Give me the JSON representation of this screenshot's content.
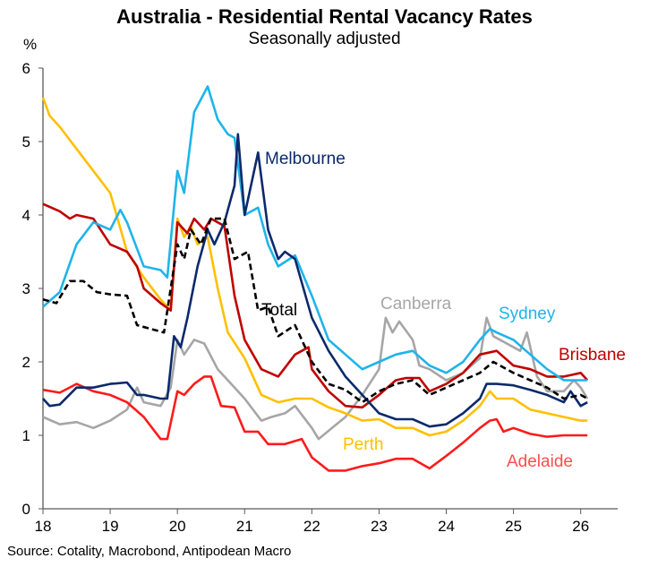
{
  "chart_data": {
    "type": "line",
    "title": "Australia - Residential Rental Vacancy Rates",
    "subtitle": "Seasonally adjusted",
    "ylabel": "%",
    "xlabel": "",
    "source": "Source: Cotality, Macrobond, Antipodean Macro",
    "xlim": [
      18,
      26.55
    ],
    "ylim": [
      0,
      6
    ],
    "xticks": [
      "18",
      "19",
      "20",
      "21",
      "22",
      "23",
      "24",
      "25",
      "26"
    ],
    "yticks": [
      "0",
      "1",
      "2",
      "3",
      "4",
      "5",
      "6"
    ],
    "grid": false,
    "legend": "inline labels",
    "series": [
      {
        "name": "Canberra",
        "color": "#a6a6a6",
        "dashed": false,
        "points": [
          [
            18,
            1.25
          ],
          [
            18.25,
            1.15
          ],
          [
            18.5,
            1.18
          ],
          [
            18.75,
            1.1
          ],
          [
            19,
            1.2
          ],
          [
            19.25,
            1.35
          ],
          [
            19.4,
            1.65
          ],
          [
            19.5,
            1.45
          ],
          [
            19.75,
            1.4
          ],
          [
            19.9,
            1.65
          ],
          [
            20,
            2.3
          ],
          [
            20.1,
            2.1
          ],
          [
            20.25,
            2.3
          ],
          [
            20.4,
            2.25
          ],
          [
            20.6,
            1.9
          ],
          [
            20.75,
            1.75
          ],
          [
            21,
            1.5
          ],
          [
            21.25,
            1.2
          ],
          [
            21.4,
            1.25
          ],
          [
            21.6,
            1.3
          ],
          [
            21.75,
            1.4
          ],
          [
            22,
            1.1
          ],
          [
            22.1,
            0.95
          ],
          [
            22.3,
            1.1
          ],
          [
            22.5,
            1.25
          ],
          [
            22.75,
            1.55
          ],
          [
            23,
            1.9
          ],
          [
            23.1,
            2.6
          ],
          [
            23.2,
            2.4
          ],
          [
            23.3,
            2.55
          ],
          [
            23.5,
            2.3
          ],
          [
            23.6,
            1.95
          ],
          [
            23.75,
            1.9
          ],
          [
            24,
            1.75
          ],
          [
            24.25,
            1.85
          ],
          [
            24.5,
            2.05
          ],
          [
            24.6,
            2.6
          ],
          [
            24.7,
            2.35
          ],
          [
            24.9,
            2.25
          ],
          [
            25.1,
            2.15
          ],
          [
            25.2,
            2.4
          ],
          [
            25.35,
            1.8
          ],
          [
            25.5,
            1.6
          ],
          [
            25.75,
            1.6
          ],
          [
            25.9,
            1.75
          ],
          [
            26,
            1.65
          ],
          [
            26.1,
            1.5
          ]
        ]
      },
      {
        "name": "Perth",
        "color": "#ffc000",
        "dashed": false,
        "points": [
          [
            18,
            5.6
          ],
          [
            18.1,
            5.35
          ],
          [
            18.25,
            5.2
          ],
          [
            18.5,
            4.9
          ],
          [
            18.75,
            4.6
          ],
          [
            19,
            4.3
          ],
          [
            19.25,
            3.5
          ],
          [
            19.5,
            3.15
          ],
          [
            19.75,
            2.85
          ],
          [
            19.9,
            2.7
          ],
          [
            20,
            3.95
          ],
          [
            20.1,
            3.7
          ],
          [
            20.2,
            3.85
          ],
          [
            20.3,
            3.6
          ],
          [
            20.45,
            3.7
          ],
          [
            20.6,
            3.0
          ],
          [
            20.75,
            2.4
          ],
          [
            21,
            2.05
          ],
          [
            21.25,
            1.55
          ],
          [
            21.5,
            1.45
          ],
          [
            21.75,
            1.5
          ],
          [
            22,
            1.5
          ],
          [
            22.25,
            1.38
          ],
          [
            22.5,
            1.3
          ],
          [
            22.75,
            1.2
          ],
          [
            23,
            1.22
          ],
          [
            23.25,
            1.1
          ],
          [
            23.5,
            1.1
          ],
          [
            23.75,
            1.0
          ],
          [
            24,
            1.05
          ],
          [
            24.25,
            1.2
          ],
          [
            24.5,
            1.4
          ],
          [
            24.65,
            1.6
          ],
          [
            24.75,
            1.5
          ],
          [
            25,
            1.5
          ],
          [
            25.25,
            1.35
          ],
          [
            25.5,
            1.3
          ],
          [
            25.75,
            1.25
          ],
          [
            26,
            1.2
          ],
          [
            26.1,
            1.2
          ]
        ]
      },
      {
        "name": "Adelaide",
        "color": "#ff1a1a",
        "dashed": false,
        "points": [
          [
            18,
            1.62
          ],
          [
            18.25,
            1.58
          ],
          [
            18.5,
            1.7
          ],
          [
            18.75,
            1.6
          ],
          [
            19,
            1.55
          ],
          [
            19.25,
            1.45
          ],
          [
            19.5,
            1.25
          ],
          [
            19.75,
            0.95
          ],
          [
            19.85,
            0.95
          ],
          [
            20,
            1.6
          ],
          [
            20.1,
            1.55
          ],
          [
            20.25,
            1.7
          ],
          [
            20.4,
            1.8
          ],
          [
            20.5,
            1.8
          ],
          [
            20.65,
            1.4
          ],
          [
            20.85,
            1.38
          ],
          [
            21,
            1.05
          ],
          [
            21.2,
            1.05
          ],
          [
            21.35,
            0.88
          ],
          [
            21.6,
            0.88
          ],
          [
            21.85,
            0.95
          ],
          [
            22,
            0.7
          ],
          [
            22.25,
            0.52
          ],
          [
            22.5,
            0.52
          ],
          [
            22.75,
            0.58
          ],
          [
            23,
            0.62
          ],
          [
            23.25,
            0.68
          ],
          [
            23.5,
            0.68
          ],
          [
            23.75,
            0.55
          ],
          [
            24,
            0.72
          ],
          [
            24.25,
            0.9
          ],
          [
            24.5,
            1.1
          ],
          [
            24.65,
            1.2
          ],
          [
            24.75,
            1.22
          ],
          [
            24.85,
            1.05
          ],
          [
            25,
            1.1
          ],
          [
            25.25,
            1.02
          ],
          [
            25.5,
            0.98
          ],
          [
            25.75,
            1.0
          ],
          [
            26,
            1.0
          ],
          [
            26.1,
            1.0
          ]
        ]
      },
      {
        "name": "Brisbane",
        "color": "#c00000",
        "dashed": false,
        "points": [
          [
            18,
            4.15
          ],
          [
            18.25,
            4.05
          ],
          [
            18.4,
            3.95
          ],
          [
            18.5,
            4.0
          ],
          [
            18.75,
            3.95
          ],
          [
            19,
            3.6
          ],
          [
            19.25,
            3.5
          ],
          [
            19.4,
            3.3
          ],
          [
            19.5,
            3.0
          ],
          [
            19.75,
            2.8
          ],
          [
            19.9,
            2.7
          ],
          [
            20,
            3.9
          ],
          [
            20.15,
            3.75
          ],
          [
            20.25,
            3.95
          ],
          [
            20.4,
            3.8
          ],
          [
            20.5,
            3.95
          ],
          [
            20.7,
            3.85
          ],
          [
            20.85,
            2.9
          ],
          [
            21,
            2.3
          ],
          [
            21.25,
            1.9
          ],
          [
            21.5,
            1.8
          ],
          [
            21.75,
            2.1
          ],
          [
            21.95,
            2.2
          ],
          [
            22,
            1.9
          ],
          [
            22.25,
            1.6
          ],
          [
            22.5,
            1.4
          ],
          [
            22.75,
            1.38
          ],
          [
            23,
            1.55
          ],
          [
            23.25,
            1.75
          ],
          [
            23.4,
            1.78
          ],
          [
            23.6,
            1.78
          ],
          [
            23.75,
            1.6
          ],
          [
            24,
            1.7
          ],
          [
            24.25,
            1.85
          ],
          [
            24.5,
            2.1
          ],
          [
            24.75,
            2.15
          ],
          [
            25,
            1.95
          ],
          [
            25.25,
            1.9
          ],
          [
            25.5,
            1.8
          ],
          [
            25.75,
            1.8
          ],
          [
            26,
            1.85
          ],
          [
            26.1,
            1.75
          ]
        ]
      },
      {
        "name": "Sydney",
        "color": "#1fb4ea",
        "dashed": false,
        "points": [
          [
            18,
            2.75
          ],
          [
            18.25,
            2.95
          ],
          [
            18.5,
            3.6
          ],
          [
            18.75,
            3.9
          ],
          [
            19,
            3.8
          ],
          [
            19.15,
            4.07
          ],
          [
            19.25,
            3.9
          ],
          [
            19.5,
            3.3
          ],
          [
            19.75,
            3.25
          ],
          [
            19.85,
            3.15
          ],
          [
            20,
            4.6
          ],
          [
            20.1,
            4.3
          ],
          [
            20.25,
            5.4
          ],
          [
            20.45,
            5.75
          ],
          [
            20.6,
            5.3
          ],
          [
            20.75,
            5.1
          ],
          [
            20.85,
            5.05
          ],
          [
            21,
            4.0
          ],
          [
            21.2,
            4.1
          ],
          [
            21.35,
            3.6
          ],
          [
            21.5,
            3.3
          ],
          [
            21.75,
            3.45
          ],
          [
            22,
            2.9
          ],
          [
            22.25,
            2.3
          ],
          [
            22.5,
            2.1
          ],
          [
            22.75,
            1.9
          ],
          [
            23,
            2.0
          ],
          [
            23.25,
            2.1
          ],
          [
            23.5,
            2.15
          ],
          [
            23.75,
            1.95
          ],
          [
            24,
            1.85
          ],
          [
            24.25,
            2.0
          ],
          [
            24.5,
            2.3
          ],
          [
            24.65,
            2.45
          ],
          [
            24.75,
            2.4
          ],
          [
            25,
            2.3
          ],
          [
            25.25,
            2.1
          ],
          [
            25.5,
            1.9
          ],
          [
            25.75,
            1.75
          ],
          [
            26,
            1.75
          ],
          [
            26.1,
            1.75
          ]
        ]
      },
      {
        "name": "Melbourne",
        "color": "#0b2a6b",
        "dashed": false,
        "points": [
          [
            18,
            1.5
          ],
          [
            18.1,
            1.4
          ],
          [
            18.25,
            1.42
          ],
          [
            18.5,
            1.65
          ],
          [
            18.75,
            1.65
          ],
          [
            19,
            1.7
          ],
          [
            19.25,
            1.72
          ],
          [
            19.4,
            1.55
          ],
          [
            19.5,
            1.55
          ],
          [
            19.75,
            1.5
          ],
          [
            19.85,
            1.5
          ],
          [
            19.95,
            2.35
          ],
          [
            20.05,
            2.2
          ],
          [
            20.15,
            2.6
          ],
          [
            20.3,
            3.3
          ],
          [
            20.45,
            3.8
          ],
          [
            20.55,
            3.6
          ],
          [
            20.7,
            3.9
          ],
          [
            20.85,
            4.4
          ],
          [
            20.9,
            5.1
          ],
          [
            21,
            4.0
          ],
          [
            21.2,
            4.85
          ],
          [
            21.35,
            3.8
          ],
          [
            21.5,
            3.4
          ],
          [
            21.6,
            3.5
          ],
          [
            21.75,
            3.4
          ],
          [
            22,
            2.6
          ],
          [
            22.25,
            2.15
          ],
          [
            22.5,
            1.8
          ],
          [
            22.75,
            1.55
          ],
          [
            23,
            1.3
          ],
          [
            23.25,
            1.22
          ],
          [
            23.5,
            1.22
          ],
          [
            23.75,
            1.12
          ],
          [
            24,
            1.15
          ],
          [
            24.25,
            1.3
          ],
          [
            24.5,
            1.5
          ],
          [
            24.6,
            1.7
          ],
          [
            24.75,
            1.7
          ],
          [
            25,
            1.68
          ],
          [
            25.25,
            1.62
          ],
          [
            25.5,
            1.55
          ],
          [
            25.75,
            1.45
          ],
          [
            25.85,
            1.6
          ],
          [
            26,
            1.4
          ],
          [
            26.1,
            1.45
          ]
        ]
      },
      {
        "name": "Total",
        "color": "#000000",
        "dashed": true,
        "points": [
          [
            18,
            2.85
          ],
          [
            18.2,
            2.8
          ],
          [
            18.4,
            3.1
          ],
          [
            18.6,
            3.1
          ],
          [
            18.8,
            2.95
          ],
          [
            19,
            2.92
          ],
          [
            19.25,
            2.9
          ],
          [
            19.4,
            2.5
          ],
          [
            19.6,
            2.45
          ],
          [
            19.8,
            2.4
          ],
          [
            19.9,
            3.0
          ],
          [
            20,
            3.6
          ],
          [
            20.1,
            3.4
          ],
          [
            20.2,
            3.8
          ],
          [
            20.35,
            3.6
          ],
          [
            20.5,
            3.95
          ],
          [
            20.7,
            3.95
          ],
          [
            20.85,
            3.4
          ],
          [
            21.05,
            3.5
          ],
          [
            21.2,
            2.7
          ],
          [
            21.35,
            2.75
          ],
          [
            21.5,
            2.35
          ],
          [
            21.75,
            2.5
          ],
          [
            22,
            2.0
          ],
          [
            22.25,
            1.7
          ],
          [
            22.5,
            1.62
          ],
          [
            22.75,
            1.45
          ],
          [
            23,
            1.6
          ],
          [
            23.25,
            1.7
          ],
          [
            23.5,
            1.75
          ],
          [
            23.75,
            1.55
          ],
          [
            24,
            1.65
          ],
          [
            24.25,
            1.75
          ],
          [
            24.5,
            1.85
          ],
          [
            24.7,
            2.0
          ],
          [
            25,
            1.85
          ],
          [
            25.25,
            1.75
          ],
          [
            25.5,
            1.65
          ],
          [
            25.75,
            1.5
          ],
          [
            26,
            1.55
          ],
          [
            26.1,
            1.5
          ]
        ]
      }
    ]
  }
}
